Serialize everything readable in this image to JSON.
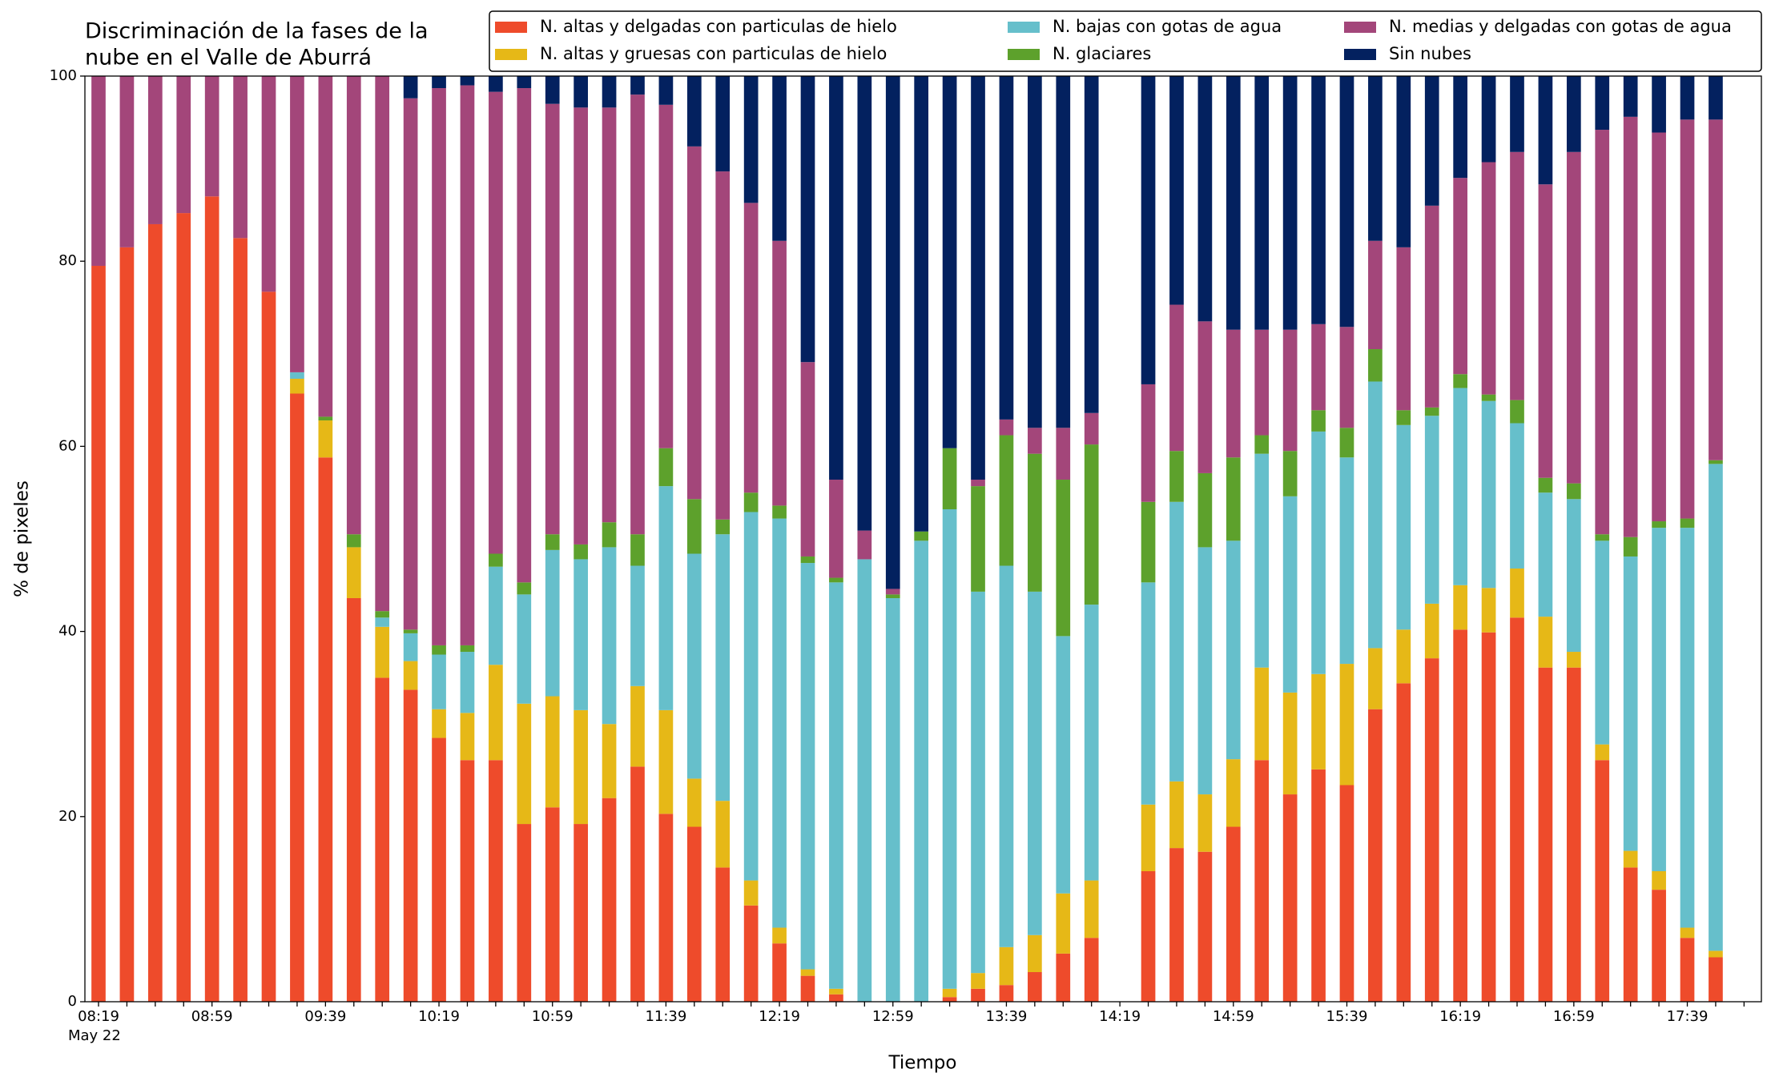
{
  "chart_data": {
    "type": "stacked_bar",
    "title": [
      "Discriminación de la fases de la",
      "nube en el Valle de Aburrá"
    ],
    "xlabel": "Tiempo",
    "ylabel": "% de pixeles",
    "date_label": "May 22",
    "categories": [
      "08:19",
      null,
      null,
      null,
      "08:59",
      null,
      null,
      null,
      "09:39",
      null,
      null,
      null,
      "10:19",
      null,
      null,
      null,
      "10:59",
      null,
      null,
      null,
      "11:39",
      null,
      null,
      null,
      "12:19",
      null,
      null,
      null,
      "12:59",
      null,
      null,
      null,
      "13:39",
      null,
      null,
      null,
      "14:19",
      null,
      null,
      null,
      "14:59",
      null,
      null,
      null,
      "15:39",
      null,
      null,
      null,
      "16:19",
      null,
      null,
      null,
      "16:59",
      null,
      null,
      null,
      "17:39",
      null
    ],
    "ylim": [
      0,
      100
    ],
    "yticks": [
      0,
      20,
      40,
      60,
      80,
      100
    ],
    "legend": "top-right",
    "series": [
      {
        "name": "N. altas y delgadas con particulas de hielo",
        "color": "#ee4b2b",
        "values": [
          79.5,
          81.5,
          84,
          85.2,
          87,
          82.5,
          76.7,
          65.7,
          58.8,
          43.6,
          35,
          33.7,
          28.5,
          26.1,
          26.1,
          19.2,
          21,
          19.2,
          22,
          25.4,
          20.3,
          18.9,
          14.5,
          10.4,
          6.3,
          2.8,
          0.8,
          0,
          0,
          0,
          0.5,
          1.4,
          1.8,
          3.2,
          5.2,
          6.9,
          null,
          14.1,
          16.6,
          16.2,
          18.9,
          26.1,
          22.4,
          25.1,
          23.4,
          31.6,
          34.4,
          37.1,
          40.2,
          39.9,
          41.5,
          36.1,
          36.1,
          26.1,
          14.5,
          12.1,
          6.9,
          4.8
        ]
      },
      {
        "name": "N. altas y gruesas con particulas de hielo",
        "color": "#e6b817",
        "values": [
          0,
          0,
          0,
          0,
          0,
          0,
          0,
          1.6,
          4,
          5.5,
          5.5,
          3.1,
          3.1,
          5.1,
          10.3,
          13,
          12,
          12.3,
          8,
          8.7,
          11.2,
          5.2,
          7.2,
          2.7,
          1.7,
          0.7,
          0.6,
          0,
          0,
          0,
          0.9,
          1.7,
          4.1,
          4,
          6.5,
          6.2,
          null,
          7.2,
          7.2,
          6.2,
          7.3,
          10,
          11,
          10.3,
          13.1,
          6.6,
          5.8,
          5.9,
          4.8,
          4.8,
          5.3,
          5.5,
          1.7,
          1.7,
          1.8,
          2,
          1.1,
          0.7
        ]
      },
      {
        "name": "N. bajas con gotas de agua",
        "color": "#66bfcb",
        "values": [
          0,
          0,
          0,
          0,
          0,
          0,
          0,
          0.7,
          0,
          0,
          1,
          3,
          5.9,
          6.6,
          10.6,
          11.8,
          15.8,
          16.3,
          19.1,
          13,
          24.2,
          24.3,
          28.8,
          39.8,
          44.2,
          43.9,
          43.9,
          47.8,
          43.6,
          49.8,
          51.8,
          41.2,
          41.2,
          37.1,
          27.8,
          29.8,
          null,
          24,
          30.2,
          26.7,
          23.6,
          23.1,
          21.2,
          26.2,
          22.3,
          28.8,
          22.1,
          20.3,
          21.3,
          20.2,
          15.7,
          13.4,
          16.5,
          22,
          31.8,
          37.1,
          43.2,
          52.6
        ]
      },
      {
        "name": "N. glaciares",
        "color": "#5da12c",
        "values": [
          0,
          0,
          0,
          0,
          0,
          0,
          0,
          0,
          0.4,
          1.4,
          0.7,
          0.4,
          1,
          0.7,
          1.4,
          1.3,
          1.7,
          1.6,
          2.7,
          3.4,
          4.1,
          5.9,
          1.6,
          2.1,
          1.4,
          0.7,
          0.5,
          0,
          0.4,
          1,
          6.6,
          11.4,
          14.1,
          14.9,
          16.9,
          17.3,
          null,
          8.7,
          5.5,
          8,
          9,
          2,
          4.9,
          2.3,
          3.2,
          3.5,
          1.6,
          0.9,
          1.5,
          0.7,
          2.5,
          1.6,
          1.7,
          0.7,
          2.1,
          0.7,
          1,
          0.4
        ]
      },
      {
        "name": "N. medias y delgadas con gotas de agua",
        "color": "#a3467a",
        "values": [
          20.5,
          18.5,
          16,
          14.8,
          13,
          17.5,
          23.3,
          32,
          36.8,
          49.5,
          57.8,
          57.4,
          60.2,
          60.5,
          49.9,
          53.4,
          46.5,
          47.2,
          44.8,
          47.5,
          37.1,
          38.1,
          37.6,
          31.3,
          28.6,
          21,
          10.6,
          3.1,
          0.6,
          0,
          0,
          0.7,
          1.7,
          2.8,
          5.6,
          3.4,
          null,
          12.7,
          15.8,
          16.4,
          13.8,
          11.4,
          13.1,
          9.3,
          10.9,
          11.7,
          17.6,
          21.8,
          21.2,
          25.1,
          26.8,
          31.7,
          35.8,
          43.7,
          45.4,
          42,
          43.1,
          36.8
        ]
      },
      {
        "name": "Sin nubes",
        "color": "#03215f",
        "values": [
          0,
          0,
          0,
          0,
          0,
          0,
          0,
          0,
          0,
          0,
          0,
          2.4,
          1.3,
          1,
          1.7,
          1.3,
          3,
          3.4,
          3.4,
          2,
          3.1,
          7.6,
          10.3,
          13.7,
          17.8,
          30.9,
          43.6,
          49.1,
          55.4,
          49.2,
          40.2,
          43.6,
          37.1,
          38,
          38,
          36.4,
          null,
          33.3,
          24.7,
          26.5,
          27.4,
          27.4,
          27.4,
          26.8,
          27.1,
          17.8,
          18.5,
          14,
          11,
          9.3,
          8.2,
          11.7,
          8.2,
          5.8,
          4.4,
          6.1,
          4.7,
          4.7
        ]
      }
    ]
  }
}
